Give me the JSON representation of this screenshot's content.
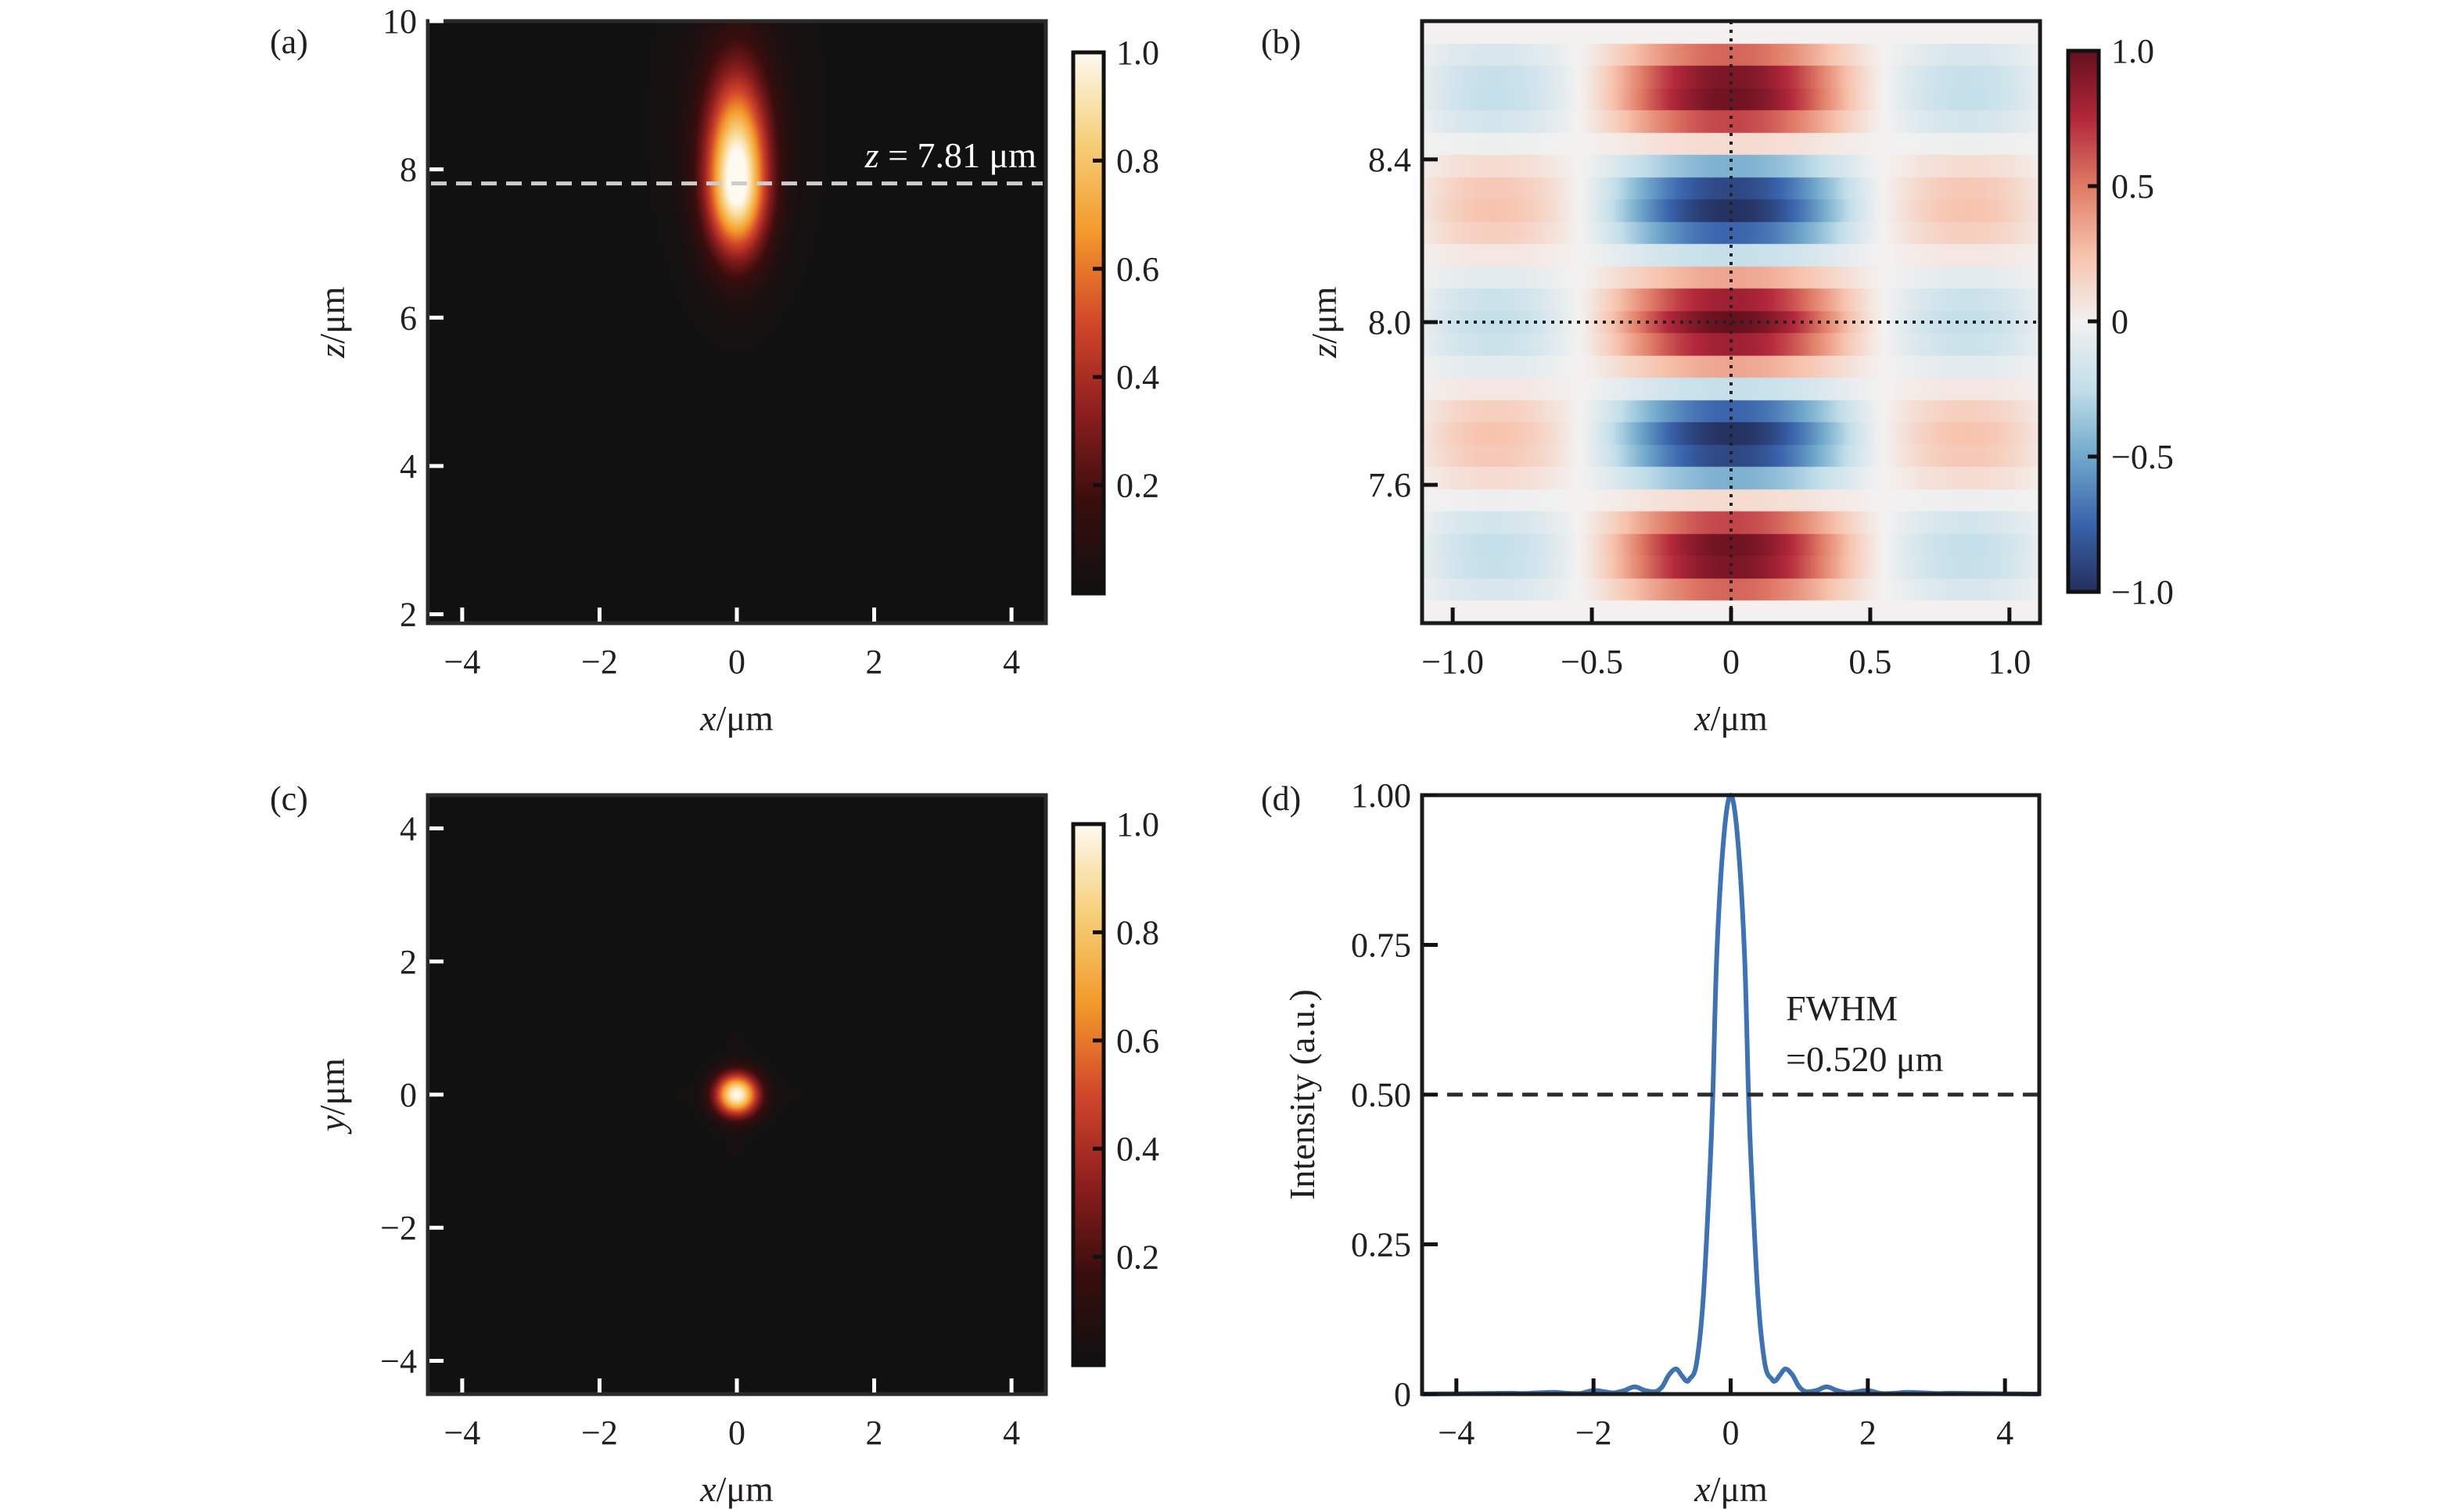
{
  "chart_data": [
    {
      "id": "a",
      "type": "heatmap",
      "panel_label": "(a)",
      "title": "",
      "xlabel_var": "x",
      "xlabel_unit": "/μm",
      "ylabel_var": "z",
      "ylabel_unit": "/μm",
      "xlim": [
        -4.5,
        4.5
      ],
      "ylim": [
        1.88,
        10
      ],
      "xticks": [
        -4,
        -2,
        0,
        2,
        4
      ],
      "xtick_labels": [
        "−4",
        "−2",
        "0",
        "2",
        "4"
      ],
      "yticks": [
        2,
        4,
        6,
        8,
        10
      ],
      "ytick_labels": [
        "2",
        "4",
        "6",
        "8",
        "10"
      ],
      "colormap": "afmhot-like (black → red → orange → white)",
      "colormap_stops": [
        "#111111",
        "#3a0d0d",
        "#8e1e1e",
        "#d2472a",
        "#f49a2a",
        "#f7cf7a",
        "#fffaf0"
      ],
      "colorbar": {
        "range": [
          0,
          1.0
        ],
        "ticks": [
          0.2,
          0.4,
          0.6,
          0.8,
          1.0
        ],
        "tick_labels": [
          "0.2",
          "0.4",
          "0.6",
          "0.8",
          "1.0"
        ]
      },
      "field": {
        "description": "elongated focal spot along z",
        "center_x": 0,
        "center_z": 7.81,
        "sigma_x": 0.3,
        "sigma_z_up": 0.9,
        "sigma_z_down": 0.65,
        "peak": 1.0
      },
      "annotations": [
        {
          "text_var": "z",
          "text_rest": " = 7.81 μm",
          "type": "hline",
          "y": 7.81,
          "style": "dashed",
          "color": "#cccccc"
        }
      ]
    },
    {
      "id": "b",
      "type": "heatmap",
      "panel_label": "(b)",
      "title": "",
      "xlabel_var": "x",
      "xlabel_unit": "/μm",
      "ylabel_var": "z",
      "ylabel_unit": "/μm",
      "xlim": [
        -1.11,
        1.11
      ],
      "ylim": [
        7.26,
        8.74
      ],
      "xticks": [
        -1.0,
        -0.5,
        0,
        0.5,
        1.0
      ],
      "xtick_labels": [
        "−1.0",
        "−0.5",
        "0",
        "0.5",
        "1.0"
      ],
      "yticks": [
        7.6,
        8.0,
        8.4
      ],
      "ytick_labels": [
        "7.6",
        "8.0",
        "8.4"
      ],
      "colormap": "RdBu_r",
      "colormap_stops": [
        "#24305e",
        "#3a64ad",
        "#71a9cc",
        "#c3dfea",
        "#f3f1f0",
        "#f7c3ad",
        "#e07c67",
        "#b3283b",
        "#66101e"
      ],
      "colorbar": {
        "range": [
          -1.0,
          1.0
        ],
        "ticks": [
          -1.0,
          -0.5,
          0,
          0.5,
          1.0
        ],
        "tick_labels": [
          "−1.0",
          "−0.5",
          "0",
          "0.5",
          "1.0"
        ]
      },
      "field": {
        "description": "standing-wave field, value = A(x)·cos(2π(z−8.0)/λ)",
        "z0": 8.0,
        "wavelength": 0.57,
        "rows": 27,
        "central_lobe_zero_x": 0.55,
        "outer_lobe_amplitude": -0.25
      },
      "crosshair": {
        "x": 0,
        "y": 8.0,
        "style": "dotted",
        "color": "#222222"
      }
    },
    {
      "id": "c",
      "type": "heatmap",
      "panel_label": "(c)",
      "title": "",
      "xlabel_var": "x",
      "xlabel_unit": "/μm",
      "ylabel_var": "y",
      "ylabel_unit": "/μm",
      "xlim": [
        -4.5,
        4.5
      ],
      "ylim": [
        -4.5,
        4.5
      ],
      "xticks": [
        -4,
        -2,
        0,
        2,
        4
      ],
      "xtick_labels": [
        "−4",
        "−2",
        "0",
        "2",
        "4"
      ],
      "yticks": [
        -4,
        -2,
        0,
        2,
        4
      ],
      "ytick_labels": [
        "−4",
        "−2",
        "0",
        "2",
        "4"
      ],
      "colormap": "afmhot-like (black → red → orange → white)",
      "colormap_stops": [
        "#111111",
        "#3a0d0d",
        "#8e1e1e",
        "#d2472a",
        "#f49a2a",
        "#f7cf7a",
        "#fffaf0"
      ],
      "colorbar": {
        "range": [
          0,
          1.0
        ],
        "ticks": [
          0.2,
          0.4,
          0.6,
          0.8,
          1.0
        ],
        "tick_labels": [
          "0.2",
          "0.4",
          "0.6",
          "0.8",
          "1.0"
        ]
      },
      "field": {
        "description": "circular focal spot (Airy-like) at origin",
        "center_x": 0,
        "center_y": 0,
        "fwhm": 0.52,
        "peak": 1.0
      }
    },
    {
      "id": "d",
      "type": "line",
      "panel_label": "(d)",
      "title": "",
      "xlabel_var": "x",
      "xlabel_unit": "/μm",
      "ylabel": "Intensity (a.u.)",
      "xlim": [
        -4.5,
        4.5
      ],
      "ylim": [
        0,
        1.0
      ],
      "xticks": [
        -4,
        -2,
        0,
        2,
        4
      ],
      "xtick_labels": [
        "−4",
        "−2",
        "0",
        "2",
        "4"
      ],
      "yticks": [
        0,
        0.25,
        0.5,
        0.75,
        1.0
      ],
      "ytick_labels": [
        "0",
        "0.25",
        "0.50",
        "0.75",
        "1.00"
      ],
      "series": [
        {
          "name": "intensity profile",
          "color": "#3d72b4",
          "x": [
            -4.5,
            -4.0,
            -3.6,
            -3.2,
            -3.0,
            -2.6,
            -2.4,
            -2.2,
            -2.0,
            -1.85,
            -1.7,
            -1.55,
            -1.4,
            -1.25,
            -1.1,
            -1.0,
            -0.9,
            -0.8,
            -0.72,
            -0.65,
            -0.6,
            -0.5,
            -0.4,
            -0.3,
            -0.26,
            -0.2,
            -0.1,
            0,
            0.1,
            0.2,
            0.26,
            0.3,
            0.4,
            0.5,
            0.6,
            0.65,
            0.72,
            0.8,
            0.9,
            1.0,
            1.1,
            1.25,
            1.4,
            1.55,
            1.7,
            1.85,
            2.0,
            2.2,
            2.4,
            2.6,
            3.0,
            3.2,
            3.6,
            4.0,
            4.5
          ],
          "y": [
            0,
            0.0005,
            0.001,
            0.0015,
            0.001,
            0.003,
            0.0015,
            0.001,
            0.006,
            0.004,
            0.002,
            0.006,
            0.012,
            0.006,
            0.004,
            0.012,
            0.032,
            0.042,
            0.032,
            0.022,
            0.025,
            0.05,
            0.16,
            0.38,
            0.5,
            0.74,
            0.93,
            1.0,
            0.93,
            0.74,
            0.5,
            0.38,
            0.16,
            0.05,
            0.025,
            0.022,
            0.032,
            0.042,
            0.032,
            0.012,
            0.004,
            0.006,
            0.012,
            0.006,
            0.002,
            0.004,
            0.006,
            0.001,
            0.0015,
            0.003,
            0.001,
            0.0015,
            0.001,
            0.0005,
            0
          ]
        }
      ],
      "reference_line": {
        "y": 0.5,
        "style": "dashed",
        "color": "#2b2b2b"
      },
      "annotations": [
        {
          "line1": "FWHM",
          "line2": "=0.520 μm"
        }
      ]
    }
  ]
}
